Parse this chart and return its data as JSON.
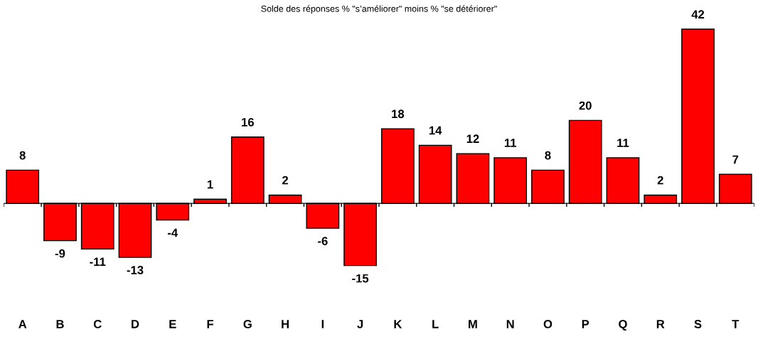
{
  "chart_data": {
    "type": "bar",
    "title": "Solde des réponses % \"s’améliorer\" moins % \"se détériorer\"",
    "categories": [
      "A",
      "B",
      "C",
      "D",
      "E",
      "F",
      "G",
      "H",
      "I",
      "J",
      "K",
      "L",
      "M",
      "N",
      "O",
      "P",
      "Q",
      "R",
      "S",
      "T"
    ],
    "values": [
      8,
      -9,
      -11,
      -13,
      -4,
      1,
      16,
      2,
      -6,
      -15,
      18,
      14,
      12,
      11,
      8,
      20,
      11,
      2,
      42,
      7
    ],
    "color": "#ff0000",
    "data_labels": true
  }
}
